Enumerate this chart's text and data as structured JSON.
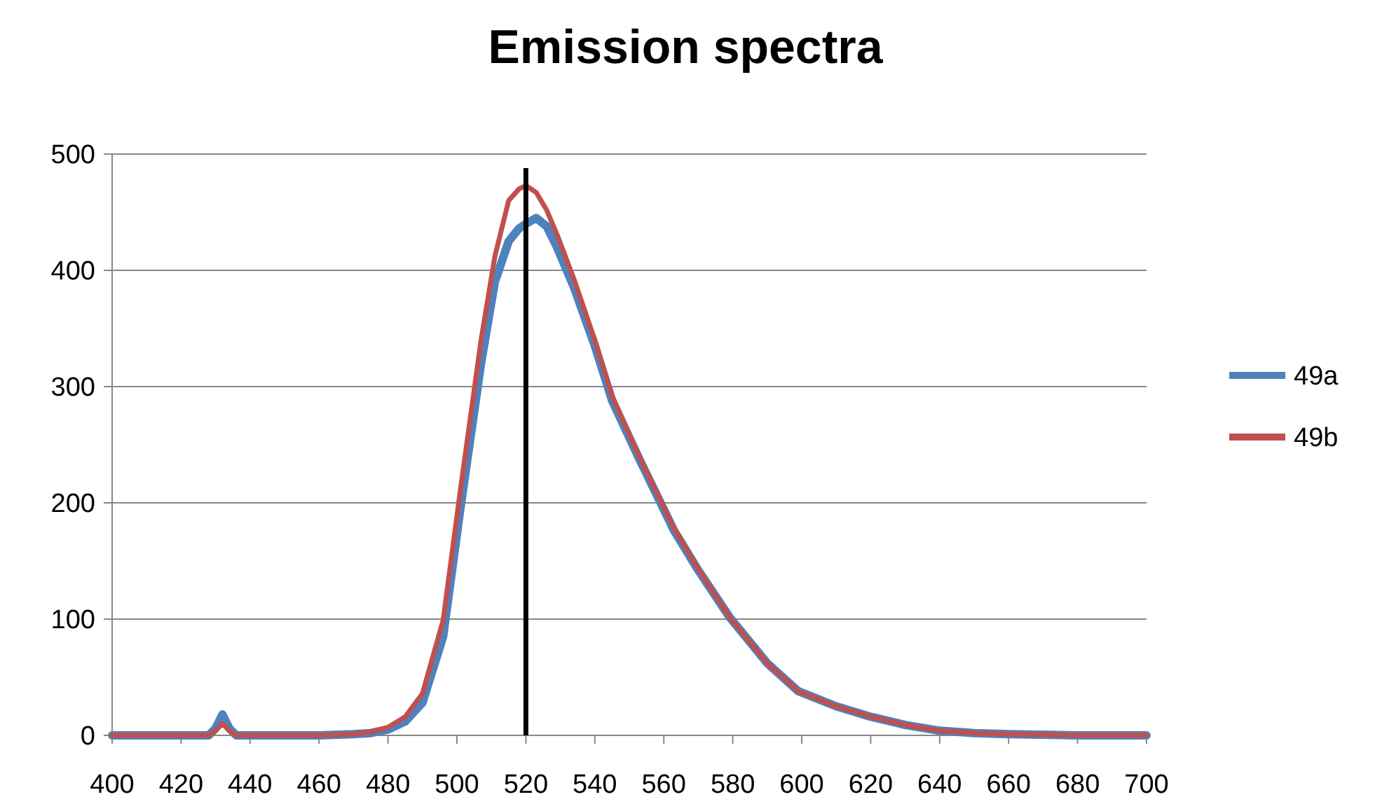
{
  "chart_data": {
    "type": "line",
    "title": "Emission spectra",
    "x": [
      400,
      428,
      430,
      432,
      434,
      436,
      460,
      470,
      475,
      480,
      485,
      490,
      496,
      501,
      507,
      511,
      515,
      518,
      520,
      523,
      526,
      529,
      534,
      540,
      545,
      553,
      563,
      570,
      579,
      590,
      599,
      610,
      620,
      630,
      640,
      650,
      660,
      680,
      700
    ],
    "series": [
      {
        "name": "49a",
        "color": "#4f81bd",
        "values": [
          0,
          0,
          6,
          18,
          6,
          0,
          0,
          1,
          2,
          5,
          12,
          28,
          85,
          195,
          320,
          390,
          425,
          436,
          440,
          445,
          438,
          420,
          385,
          335,
          288,
          237,
          176,
          142,
          102,
          62,
          38,
          25,
          16,
          9,
          4,
          2,
          1,
          0,
          0
        ]
      },
      {
        "name": "49b",
        "color": "#c0504d",
        "values": [
          0,
          0,
          4,
          10,
          4,
          0,
          0,
          1,
          3,
          7,
          16,
          36,
          99,
          211,
          340,
          412,
          460,
          470,
          473,
          467,
          452,
          431,
          392,
          340,
          292,
          239,
          178,
          143,
          102,
          62,
          38,
          25,
          16,
          9,
          4,
          2,
          1,
          0,
          0
        ]
      }
    ],
    "xlim": [
      400,
      700
    ],
    "xticks": [
      400,
      420,
      440,
      460,
      480,
      500,
      520,
      540,
      560,
      580,
      600,
      620,
      640,
      660,
      680,
      700
    ],
    "ylim": [
      0,
      500
    ],
    "yticks": [
      0,
      100,
      200,
      300,
      400,
      500
    ],
    "grid": "y",
    "legend": "right",
    "marker": "none",
    "line_style": "solid",
    "ref_lines": [
      {
        "axis": "x",
        "value": 520,
        "color": "#000000"
      }
    ]
  }
}
